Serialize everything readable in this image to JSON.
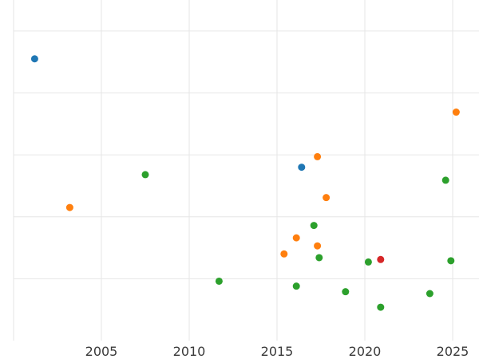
{
  "chart_data": {
    "type": "scatter",
    "title": "",
    "xlabel": "",
    "ylabel": "",
    "grid": true,
    "xlim": [
      2000.0,
      2026.5
    ],
    "ylim": [
      0.0,
      5.5
    ],
    "x_ticks": [
      2005,
      2010,
      2015,
      2020,
      2025
    ],
    "y_grid": [
      1,
      2,
      3,
      4,
      5
    ],
    "colors": {
      "blue": "#1f77b4",
      "orange": "#ff7f0e",
      "green": "#2ca02c",
      "red": "#d62728"
    },
    "series": [
      {
        "color": "blue",
        "points": [
          {
            "x": 2001.2,
            "y": 4.55
          },
          {
            "x": 2016.4,
            "y": 2.8
          }
        ]
      },
      {
        "color": "orange",
        "points": [
          {
            "x": 2003.2,
            "y": 2.15
          },
          {
            "x": 2015.4,
            "y": 1.4
          },
          {
            "x": 2016.1,
            "y": 1.66
          },
          {
            "x": 2017.3,
            "y": 2.97
          },
          {
            "x": 2017.3,
            "y": 1.53
          },
          {
            "x": 2017.8,
            "y": 2.31
          },
          {
            "x": 2025.2,
            "y": 3.69
          }
        ]
      },
      {
        "color": "green",
        "points": [
          {
            "x": 2007.5,
            "y": 2.68
          },
          {
            "x": 2011.7,
            "y": 0.96
          },
          {
            "x": 2016.1,
            "y": 0.88
          },
          {
            "x": 2017.1,
            "y": 1.86
          },
          {
            "x": 2017.4,
            "y": 1.34
          },
          {
            "x": 2018.9,
            "y": 0.79
          },
          {
            "x": 2020.2,
            "y": 1.27
          },
          {
            "x": 2020.9,
            "y": 0.54
          },
          {
            "x": 2023.7,
            "y": 0.76
          },
          {
            "x": 2024.6,
            "y": 2.59
          },
          {
            "x": 2024.9,
            "y": 1.29
          }
        ]
      },
      {
        "color": "red",
        "points": [
          {
            "x": 2020.9,
            "y": 1.31
          }
        ]
      }
    ]
  }
}
